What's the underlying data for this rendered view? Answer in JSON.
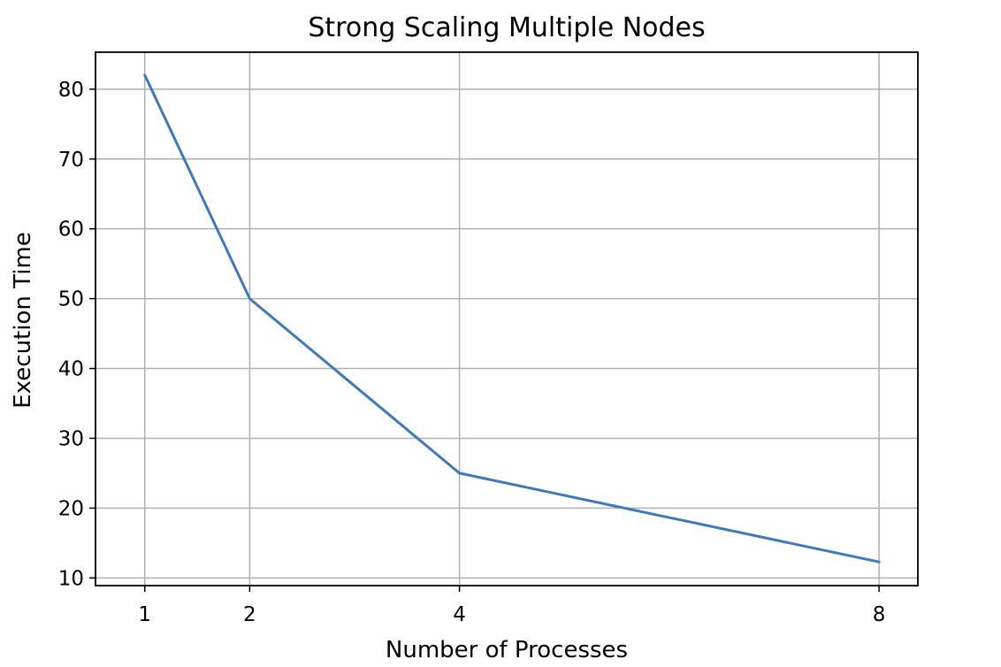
{
  "chart_data": {
    "type": "line",
    "title": "Strong Scaling Multiple Nodes",
    "xlabel": "Number of Processes",
    "ylabel": "Execution Time",
    "x": [
      1,
      2,
      4,
      8
    ],
    "xticks": [
      1,
      2,
      4,
      8
    ],
    "xlim": [
      0.53,
      8.37
    ],
    "yticks": [
      10,
      20,
      30,
      40,
      50,
      60,
      70,
      80
    ],
    "ylim": [
      8.9,
      85.3
    ],
    "grid": true,
    "series": [
      {
        "values": [
          82,
          50,
          25,
          12.3
        ],
        "color": "#4178b8"
      }
    ]
  }
}
